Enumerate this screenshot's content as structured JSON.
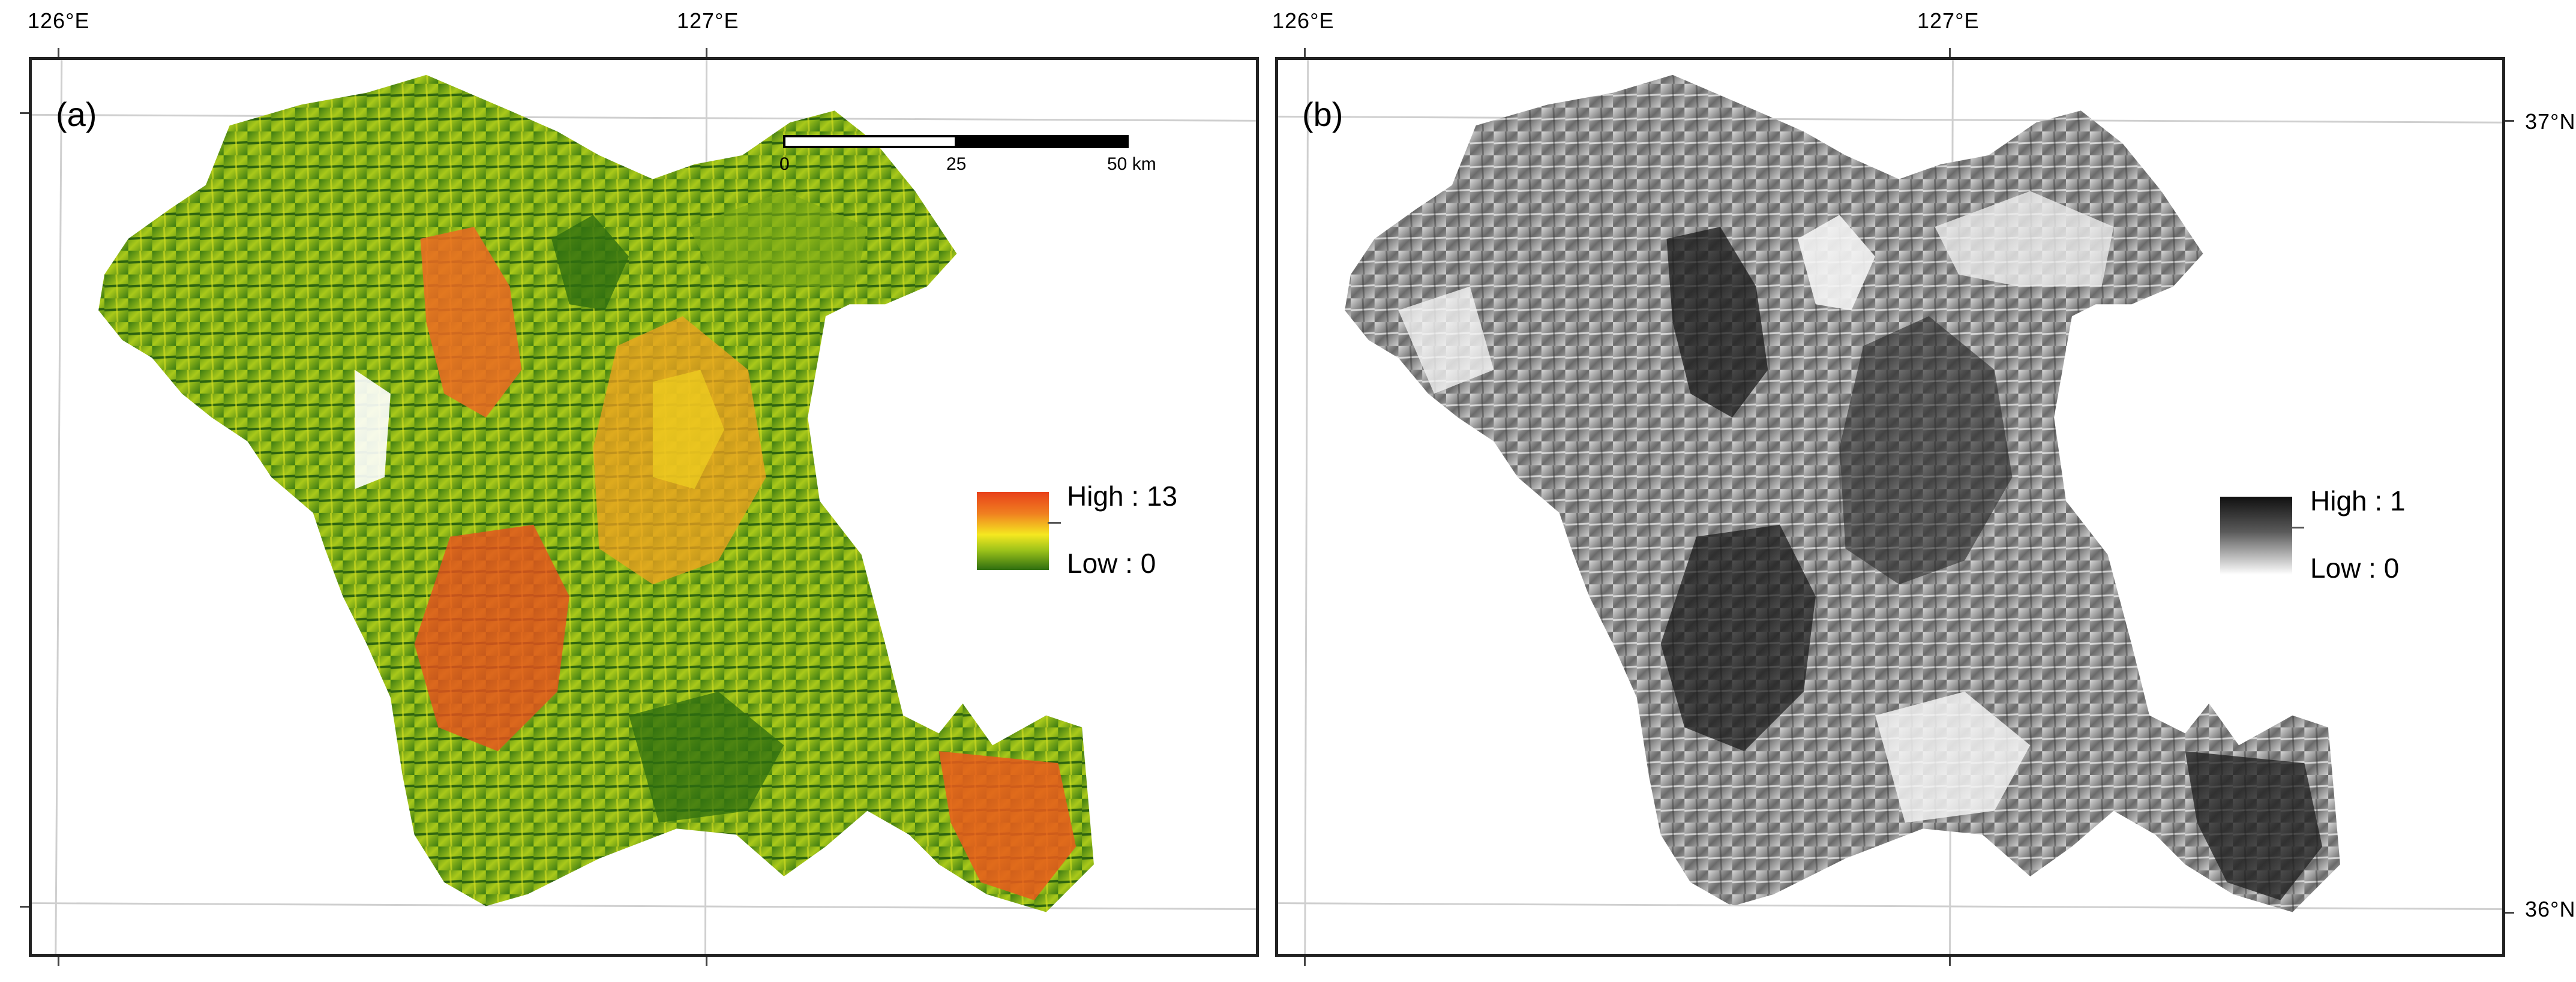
{
  "figure": {
    "lon_labels": [
      "126°E",
      "127°E"
    ],
    "lat_labels": [
      "37°N",
      "36°N"
    ],
    "scalebar": {
      "labels": [
        "0",
        "25",
        "50 km"
      ]
    },
    "panels": [
      {
        "label": "(a)",
        "legend": {
          "high": "High : 13",
          "low": "Low : 0",
          "colors": [
            "#e8401a",
            "#f0e020",
            "#2e6e10"
          ]
        }
      },
      {
        "label": "(b)",
        "legend": {
          "high": "High : 1",
          "low": "Low : 0",
          "colors": [
            "#101010",
            "#ffffff"
          ]
        }
      }
    ]
  }
}
